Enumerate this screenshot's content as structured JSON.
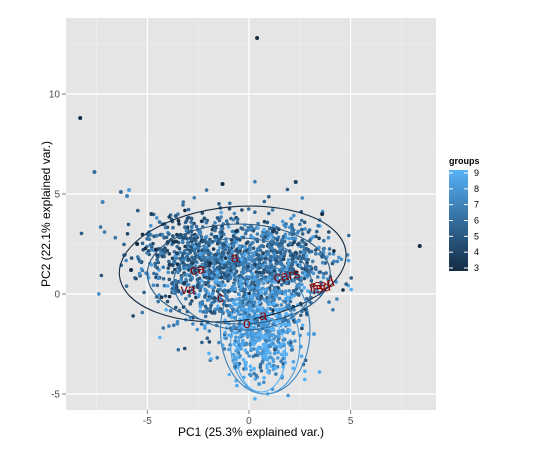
{
  "chart_data": {
    "type": "scatter",
    "title": "",
    "xlabel": "PC1 (25.3% explained var.)",
    "ylabel": "PC2 (22.1% explained var.)",
    "xlim": [
      -9,
      9.2
    ],
    "ylim": [
      -5.8,
      13.8
    ],
    "x_ticks": [
      -5,
      0,
      5
    ],
    "y_ticks": [
      -5,
      0,
      5,
      10
    ],
    "x_tick_labels": [
      "-5",
      "0",
      "5"
    ],
    "y_tick_labels": [
      "-5",
      "0",
      "5",
      "10"
    ],
    "grid": true,
    "legend": {
      "title": "groups",
      "position": "right",
      "values": [
        3,
        4,
        5,
        6,
        7,
        8,
        9
      ],
      "color_low": "#132b43",
      "color_high": "#56b1f7"
    },
    "cluster_description": "dense cloud of ~2000 points centred near (0, 0.5), colour mapped to groups",
    "outlier_points": [
      {
        "x": 0.4,
        "y": 12.8,
        "group": 3
      },
      {
        "x": -8.3,
        "y": 8.8,
        "group": 3
      },
      {
        "x": -7.6,
        "y": 6.1,
        "group": 6
      },
      {
        "x": 8.4,
        "y": 2.4,
        "group": 3
      },
      {
        "x": -6.3,
        "y": 5.1,
        "group": 6
      },
      {
        "x": -5.9,
        "y": 5.2,
        "group": 8
      },
      {
        "x": -6.0,
        "y": 4.9,
        "group": 7
      },
      {
        "x": 2.3,
        "y": 5.6,
        "group": 4
      },
      {
        "x": -1.3,
        "y": 5.5,
        "group": 3
      },
      {
        "x": -7.2,
        "y": 4.6,
        "group": 7
      },
      {
        "x": -4.8,
        "y": 4.0,
        "group": 4
      },
      {
        "x": 3.6,
        "y": 4.0,
        "group": 3
      },
      {
        "x": -3.6,
        "y": 3.9,
        "group": 5
      },
      {
        "x": -5.5,
        "y": 2.5,
        "group": 3
      },
      {
        "x": -5.8,
        "y": 1.2,
        "group": 3
      },
      {
        "x": 0.5,
        "y": -4.5,
        "group": 8
      },
      {
        "x": 1.3,
        "y": -3.7,
        "group": 9
      },
      {
        "x": -2.6,
        "y": 2.9,
        "group": 6
      },
      {
        "x": 3.2,
        "y": -2.0,
        "group": 8
      }
    ],
    "ellipses": [
      {
        "group": 3,
        "cx": -0.8,
        "cy": 1.5,
        "rx": 5.6,
        "ry": 2.85,
        "angle": 6
      },
      {
        "group": 5,
        "cx": -0.5,
        "cy": 1.0,
        "rx": 4.5,
        "ry": 2.5,
        "angle": 0
      },
      {
        "group": 6,
        "cx": -0.3,
        "cy": 0.5,
        "rx": 3.4,
        "ry": 2.3,
        "angle": -2
      },
      {
        "group": 7,
        "cx": 0.8,
        "cy": -1.8,
        "rx": 2.2,
        "ry": 3.2,
        "angle": 0
      },
      {
        "group": 8,
        "cx": 0.8,
        "cy": -2.5,
        "rx": 1.7,
        "ry": 2.5,
        "angle": 0
      },
      {
        "group": 9,
        "cx": 0.6,
        "cy": -3.0,
        "rx": 1.2,
        "ry": 1.9,
        "angle": 0
      }
    ],
    "variable_labels": [
      {
        "text": "ca",
        "x": -2.5,
        "y": 1.0,
        "angle": -10
      },
      {
        "text": "va",
        "x": -3.0,
        "y": 0.0,
        "angle": 0
      },
      {
        "text": "a",
        "x": -0.7,
        "y": 1.6,
        "angle": 0
      },
      {
        "text": "cars",
        "x": 1.9,
        "y": 0.7,
        "angle": -10
      },
      {
        "text": "rs",
        "x": 3.3,
        "y": 0.2,
        "angle": -15
      },
      {
        "text": "fsd",
        "x": 3.6,
        "y": 0.1,
        "angle": -10
      },
      {
        "text": "ed",
        "x": 3.9,
        "y": 0.3,
        "angle": -20
      },
      {
        "text": "c",
        "x": -1.4,
        "y": -0.4,
        "angle": 0
      },
      {
        "text": "a",
        "x": 0.7,
        "y": -1.3,
        "angle": 0
      },
      {
        "text": "o",
        "x": -0.1,
        "y": -1.7,
        "angle": 0
      }
    ]
  }
}
